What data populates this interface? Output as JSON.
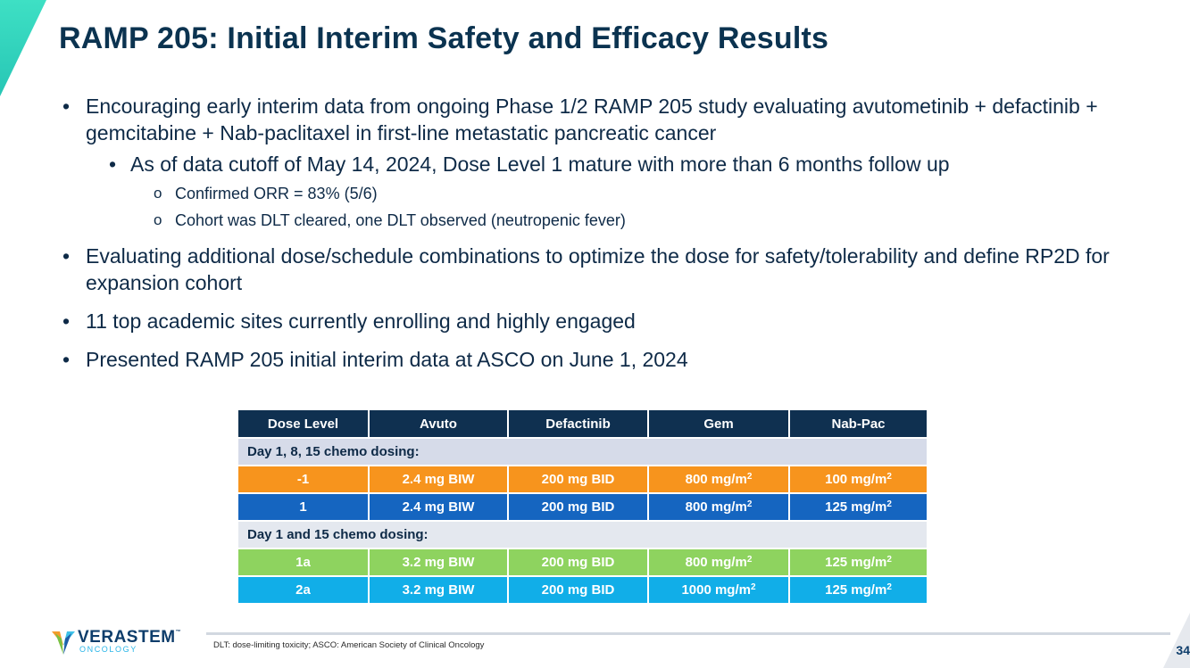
{
  "slide": {
    "title": "RAMP 205: Initial Interim Safety and Efficacy Results",
    "bullets": {
      "b1": "Encouraging early interim data from ongoing Phase 1/2 RAMP 205 study evaluating avutometinib + defactinib + gemcitabine + Nab-paclitaxel in first-line metastatic pancreatic cancer",
      "b1_sub": "As of data cutoff of May 14, 2024, Dose Level 1 mature with more than 6 months follow up",
      "b1_sub_sub1": "Confirmed ORR = 83% (5/6)",
      "b1_sub_sub2": "Cohort was DLT cleared, one DLT observed (neutropenic fever)",
      "b2": "Evaluating additional dose/schedule combinations to optimize the dose for safety/tolerability and define RP2D for expansion cohort",
      "b3": "11 top academic sites currently enrolling and highly engaged",
      "b4": "Presented RAMP 205 initial interim data at ASCO on June 1, 2024"
    }
  },
  "table": {
    "headers": [
      "Dose Level",
      "Avuto",
      "Defactinib",
      "Gem",
      "Nab-Pac"
    ],
    "section1": "Day 1, 8, 15 chemo dosing:",
    "section2": "Day 1 and 15 chemo dosing:",
    "sup2": "2",
    "rows": [
      {
        "level": "-1",
        "avuto": "2.4 mg BIW",
        "defactinib": "200 mg BID",
        "gem": "800 mg/m",
        "nabpac": "100 mg/m",
        "color": "#f7941d"
      },
      {
        "level": "1",
        "avuto": "2.4 mg BIW",
        "defactinib": "200 mg BID",
        "gem": "800 mg/m",
        "nabpac": "125 mg/m",
        "color": "#1565c0"
      },
      {
        "level": "1a",
        "avuto": "3.2 mg BIW",
        "defactinib": "200 mg BID",
        "gem": "800 mg/m",
        "nabpac": "125 mg/m",
        "color": "#8ed35f"
      },
      {
        "level": "2a",
        "avuto": "3.2 mg BIW",
        "defactinib": "200 mg BID",
        "gem": "1000 mg/m",
        "nabpac": "125 mg/m",
        "color": "#11aee8"
      }
    ]
  },
  "footer": {
    "logo_name": "VERASTEM",
    "logo_tm": "™",
    "logo_sub": "ONCOLOGY",
    "footnote": "DLT: dose-limiting toxicity; ASCO: American Society of Clinical Oncology",
    "page": "34"
  },
  "colors": {
    "title": "#0b3350",
    "header_bg": "#0f3050",
    "accent_teal": "#3ee0c4"
  }
}
